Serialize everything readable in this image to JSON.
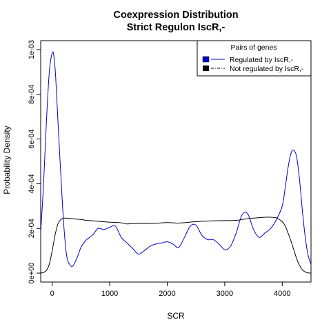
{
  "chart_data": {
    "type": "line",
    "title": "Coexpression Distribution",
    "subtitle": "Strict Regulon IscR,-",
    "xlabel": "SCR",
    "ylabel": "Probability Density",
    "xlim": [
      -200,
      4500
    ],
    "ylim": [
      -4e-05,
      0.00104
    ],
    "x_ticks": [
      0,
      1000,
      2000,
      3000,
      4000
    ],
    "x_tick_labels": [
      "0",
      "1000",
      "2000",
      "3000",
      "4000"
    ],
    "y_ticks": [
      0,
      0.0002,
      0.0004,
      0.0006,
      0.0008,
      0.001
    ],
    "y_tick_labels": [
      "0e+00",
      "2e-04",
      "4e-04",
      "6e-04",
      "8e-04",
      "1e-03"
    ],
    "grid": false,
    "legend": {
      "title": "Pairs of genes",
      "position": "top-right",
      "entries": [
        "Regulated by  IscR,-",
        "Not regulated by  IscR,-"
      ]
    },
    "series": [
      {
        "name": "Regulated by  IscR,-",
        "color": "#0000cc",
        "x": [
          -200,
          -150,
          -100,
          -50,
          0,
          30,
          60,
          100,
          150,
          200,
          250,
          300,
          350,
          400,
          450,
          500,
          550,
          600,
          700,
          800,
          900,
          1000,
          1100,
          1200,
          1300,
          1400,
          1500,
          1600,
          1700,
          1800,
          1900,
          2000,
          2100,
          2200,
          2300,
          2400,
          2500,
          2600,
          2700,
          2800,
          2900,
          3000,
          3100,
          3200,
          3300,
          3400,
          3500,
          3600,
          3700,
          3800,
          3900,
          4000,
          4050,
          4100,
          4150,
          4200,
          4250,
          4300,
          4350,
          4400,
          4450,
          4500
        ],
        "y": [
          0.00018,
          0.0004,
          0.00068,
          0.0009,
          0.000985,
          0.00097,
          0.00088,
          0.00068,
          0.00044,
          0.00022,
          8e-05,
          4e-05,
          3e-05,
          5e-05,
          8e-05,
          0.000115,
          0.000135,
          0.00015,
          0.00017,
          0.0002,
          0.000195,
          0.000205,
          0.00021,
          0.00016,
          0.000135,
          0.00011,
          8.5e-05,
          0.0001,
          0.00012,
          0.00013,
          0.000135,
          0.00014,
          0.00013,
          0.000115,
          0.00016,
          0.00021,
          0.000215,
          0.00017,
          0.00015,
          0.00015,
          0.00013,
          0.000105,
          0.00012,
          0.00018,
          0.00026,
          0.000265,
          0.000195,
          0.00016,
          0.00018,
          0.0002,
          0.00024,
          0.0003,
          0.00038,
          0.00047,
          0.000535,
          0.00055,
          0.00052,
          0.00042,
          0.00028,
          0.00016,
          8e-05,
          4e-05
        ]
      },
      {
        "name": "Not regulated by  IscR,-",
        "color": "#000000",
        "x": [
          -200,
          -150,
          -100,
          -50,
          0,
          50,
          100,
          150,
          200,
          300,
          400,
          500,
          600,
          800,
          1000,
          1200,
          1300,
          1400,
          1600,
          1800,
          2000,
          2200,
          2400,
          2600,
          2800,
          3000,
          3200,
          3400,
          3600,
          3700,
          3800,
          3900,
          3950,
          4000,
          4050,
          4100,
          4150,
          4200,
          4250,
          4300,
          4350,
          4400,
          4450,
          4500
        ],
        "y": [
          0.0,
          3e-06,
          1.2e-05,
          4e-05,
          0.0001,
          0.00017,
          0.00022,
          0.00024,
          0.000246,
          0.000245,
          0.000242,
          0.00024,
          0.000236,
          0.000232,
          0.000228,
          0.000225,
          0.00022,
          0.000222,
          0.000222,
          0.000223,
          0.000226,
          0.000224,
          0.000228,
          0.000232,
          0.000234,
          0.000235,
          0.000236,
          0.000244,
          0.000248,
          0.00025,
          0.00025,
          0.000247,
          0.00024,
          0.00023,
          0.000212,
          0.00018,
          0.000145,
          0.000105,
          6.5e-05,
          3.5e-05,
          1.5e-05,
          5e-06,
          1e-06,
          0.0
        ]
      }
    ]
  }
}
